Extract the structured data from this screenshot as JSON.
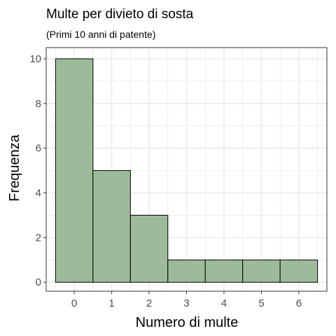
{
  "chart_data": {
    "type": "bar",
    "title": "Multe per divieto di sosta",
    "subtitle": "(Primi 10 anni di patente)",
    "xlabel": "Numero di multe",
    "ylabel": "Frequenza",
    "categories": [
      "0",
      "1",
      "2",
      "3",
      "4",
      "5",
      "6"
    ],
    "values": [
      10,
      5,
      3,
      1,
      1,
      1,
      1
    ],
    "x_ticks": [
      "0",
      "1",
      "2",
      "3",
      "4",
      "5",
      "6"
    ],
    "y_ticks": [
      "0",
      "2",
      "4",
      "6",
      "8",
      "10"
    ],
    "xlim": [
      -0.75,
      6.75
    ],
    "ylim": [
      -0.4,
      10.5
    ],
    "grid": true,
    "bar_fill": "#9dbb9a",
    "bar_stroke": "#000000",
    "grid_color": "#ebebeb",
    "panel_border": "#333333"
  }
}
